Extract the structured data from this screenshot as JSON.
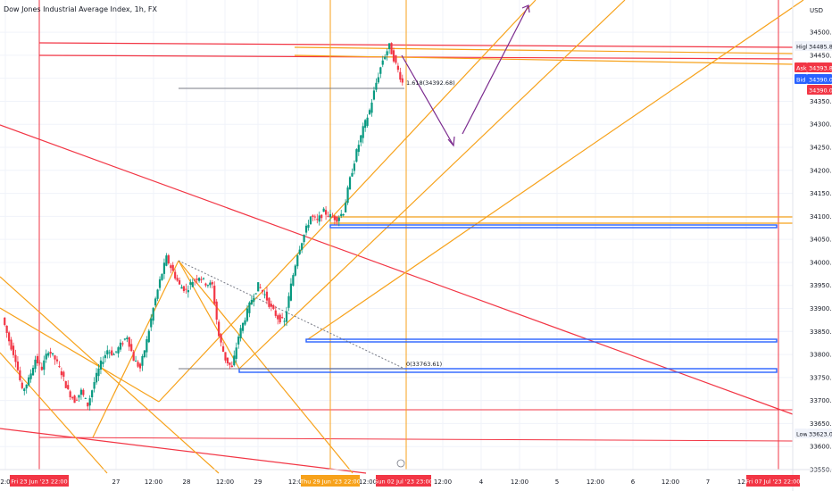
{
  "chart_data": {
    "type": "candlestick",
    "title": "Dow Jones Industrial Average Index, 1h, FX",
    "currency": "USD",
    "colors": {
      "up": "#089981",
      "down": "#f23645",
      "orange": "#f7a21b",
      "red": "#f23645",
      "blue": "#2962ff",
      "purple": "#7b2a8e",
      "grid": "#f0f3fa"
    },
    "y_axis": {
      "ylim": [
        33550,
        34570
      ],
      "ticks": [
        33550,
        33600,
        33650,
        33700,
        33750,
        33800,
        33850,
        33900,
        33950,
        34000,
        34050,
        34100,
        34150,
        34200,
        34250,
        34300,
        34350,
        34400,
        34450,
        34500
      ]
    },
    "x_axis": {
      "ticks": [
        "12:00",
        "27",
        "12:00",
        "28",
        "12:00",
        "29",
        "12:00",
        "12:00",
        "12:00",
        "4",
        "12:00",
        "5",
        "12:00",
        "6",
        "12:00",
        "7",
        "12:00"
      ],
      "highlight_left": "Fri 23 Jun '23   22:00",
      "highlight_mid": "Thu 29 Jun '23   22:00",
      "highlight_cur": "Sun 02 Jul '23   23:00",
      "highlight_right": "Fri 07 Jul '23   22:00"
    },
    "price_labels": {
      "high_label": "High",
      "high": "34485.83",
      "ask_label": "Ask",
      "ask": "34393.81",
      "bid_label": "Bid",
      "bid": "34390.03",
      "last": "34390.03",
      "low_label": "Low",
      "low": "33623.03"
    },
    "annotations": {
      "fib_top": "1.618(34392.68)",
      "fib_bottom": "0(33763.61)"
    },
    "path": [
      33880,
      33830,
      33790,
      33720,
      33745,
      33790,
      33770,
      33810,
      33790,
      33760,
      33720,
      33700,
      33720,
      33690,
      33740,
      33780,
      33810,
      33800,
      33820,
      33840,
      33790,
      33770,
      33830,
      33900,
      33960,
      34010,
      33980,
      33950,
      33940,
      33960,
      33970,
      33955,
      33950,
      33840,
      33790,
      33770,
      33840,
      33880,
      33920,
      33950,
      33930,
      33900,
      33880,
      33870,
      33950,
      34020,
      34060,
      34100,
      34090,
      34110,
      34100,
      34095,
      34110,
      34180,
      34240,
      34290,
      34330,
      34390,
      34440,
      34470,
      34430,
      34390
    ]
  }
}
